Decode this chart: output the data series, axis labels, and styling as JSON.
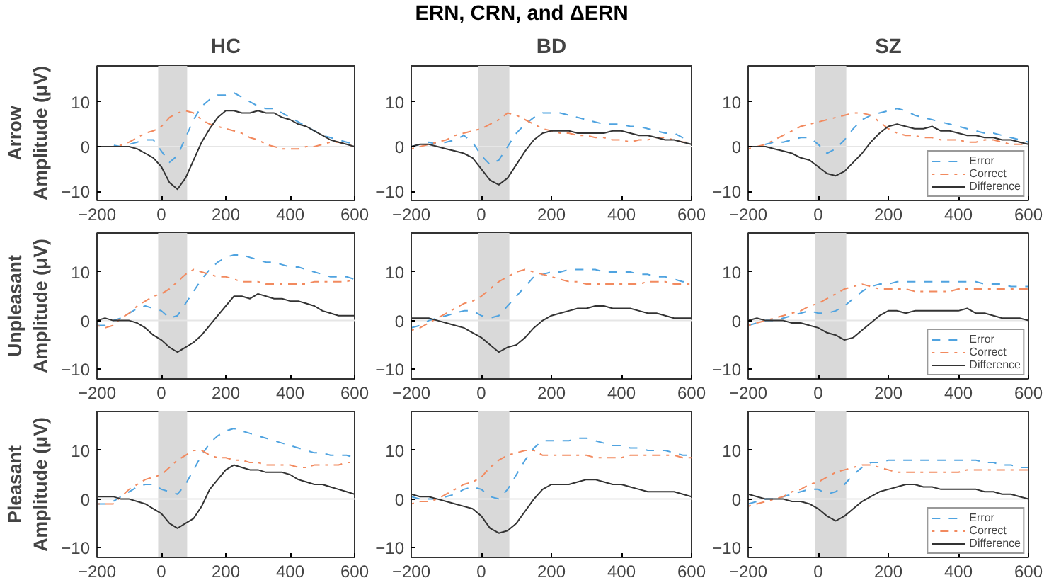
{
  "chart_data": [
    {
      "type": "line",
      "title": "HC",
      "ylabel": "Arrow\nAmplitude (μV)",
      "annotations": [
        "ERN, CRN, and ΔERN"
      ],
      "x": [
        -200,
        -175,
        -150,
        -125,
        -100,
        -75,
        -50,
        -25,
        0,
        25,
        50,
        75,
        100,
        125,
        150,
        175,
        200,
        225,
        250,
        275,
        300,
        325,
        350,
        375,
        400,
        425,
        450,
        475,
        500,
        525,
        550,
        575,
        600
      ],
      "xlim": [
        -200,
        600
      ],
      "ylim": [
        -12,
        18
      ],
      "xticks": [
        -200,
        0,
        200,
        400,
        600
      ],
      "yticks": [
        -10,
        0,
        10
      ],
      "bands": [
        {
          "axis": "x",
          "from": -10,
          "to": 80,
          "color": "#d9d9d9"
        }
      ],
      "ref_lines": [
        {
          "axis": "y",
          "value": 0,
          "color": "#e6e6e6"
        }
      ],
      "series": [
        {
          "color": "#4fa3e0",
          "line_style": "dashed",
          "values": [
            0,
            0,
            0.3,
            0,
            0.5,
            1,
            1.5,
            1.5,
            -1,
            -3.5,
            -2,
            2,
            6,
            9,
            10.5,
            11.5,
            11.5,
            12,
            11,
            10,
            9,
            8.5,
            8.5,
            7.5,
            6.5,
            5.5,
            4.5,
            3.5,
            2.5,
            2,
            1.5,
            1,
            0.5
          ]
        },
        {
          "color": "#f28a5f",
          "line_style": "dashdot",
          "values": [
            0,
            0,
            0,
            0.3,
            1,
            2,
            3,
            3.5,
            4.5,
            6.5,
            7.5,
            8,
            7.5,
            6,
            5,
            4.5,
            4,
            3.5,
            3,
            2,
            1.5,
            0.5,
            0,
            -0.5,
            -0.5,
            -0.5,
            0,
            0,
            0.5,
            1,
            1,
            0.5,
            0
          ]
        },
        {
          "color": "#333333",
          "line_style": "solid",
          "values": [
            0,
            0,
            0,
            0,
            0,
            -0.5,
            -1.5,
            -2.5,
            -4.5,
            -8,
            -9.5,
            -7,
            -3,
            1,
            4,
            6.5,
            8,
            8,
            7.5,
            7.5,
            8,
            7.5,
            7.5,
            6.5,
            6,
            5,
            4.5,
            3.5,
            2.5,
            1.5,
            1,
            0.5,
            0
          ]
        }
      ]
    },
    {
      "type": "line",
      "title": "BD",
      "x": [
        -200,
        -175,
        -150,
        -125,
        -100,
        -75,
        -50,
        -25,
        0,
        25,
        50,
        75,
        100,
        125,
        150,
        175,
        200,
        225,
        250,
        275,
        300,
        325,
        350,
        375,
        400,
        425,
        450,
        475,
        500,
        525,
        550,
        575,
        600
      ],
      "xlim": [
        -200,
        600
      ],
      "ylim": [
        -12,
        18
      ],
      "xticks": [
        -200,
        0,
        200,
        400,
        600
      ],
      "yticks": [
        -10,
        0,
        10
      ],
      "bands": [
        {
          "axis": "x",
          "from": -10,
          "to": 80,
          "color": "#d9d9d9"
        }
      ],
      "ref_lines": [
        {
          "axis": "y",
          "value": 0,
          "color": "#e6e6e6"
        }
      ],
      "series": [
        {
          "color": "#4fa3e0",
          "line_style": "dashed",
          "values": [
            0,
            0.5,
            1,
            0.5,
            1,
            1.5,
            2.5,
            1,
            -2,
            -4,
            -3,
            0,
            3,
            5,
            6.5,
            7.5,
            7.5,
            7.5,
            7,
            6.5,
            6,
            5.5,
            5,
            5,
            5,
            4.5,
            4.5,
            4,
            3.5,
            3,
            3,
            2,
            1.5
          ]
        },
        {
          "color": "#f28a5f",
          "line_style": "dashdot",
          "values": [
            -0.5,
            0,
            0.5,
            1,
            1.5,
            2.5,
            3,
            3.5,
            4,
            5,
            6,
            7.5,
            7,
            6,
            5,
            4,
            3.5,
            3,
            3,
            2.5,
            2.5,
            2,
            2,
            1.5,
            1.5,
            1,
            1.5,
            1.5,
            2,
            2,
            1.5,
            1,
            1
          ]
        },
        {
          "color": "#333333",
          "line_style": "solid",
          "values": [
            0,
            0.5,
            0.5,
            0,
            -0.5,
            -1,
            -1.5,
            -2.5,
            -5,
            -7.5,
            -8.5,
            -7,
            -4,
            -1,
            1.5,
            3,
            3.5,
            3.5,
            3.5,
            3,
            3,
            3,
            3,
            3.5,
            3.5,
            3,
            2.5,
            2.5,
            2,
            1.5,
            1.5,
            1,
            0.5
          ]
        }
      ]
    },
    {
      "type": "line",
      "title": "SZ",
      "legend": "bottom right",
      "x": [
        -200,
        -175,
        -150,
        -125,
        -100,
        -75,
        -50,
        -25,
        0,
        25,
        50,
        75,
        100,
        125,
        150,
        175,
        200,
        225,
        250,
        275,
        300,
        325,
        350,
        375,
        400,
        425,
        450,
        475,
        500,
        525,
        550,
        575,
        600
      ],
      "xlim": [
        -200,
        600
      ],
      "ylim": [
        -12,
        18
      ],
      "xticks": [
        -200,
        0,
        200,
        400,
        600
      ],
      "yticks": [
        -10,
        0,
        10
      ],
      "bands": [
        {
          "axis": "x",
          "from": -10,
          "to": 80,
          "color": "#d9d9d9"
        }
      ],
      "ref_lines": [
        {
          "axis": "y",
          "value": 0,
          "color": "#e6e6e6"
        }
      ],
      "series": [
        {
          "name": "Error",
          "color": "#4fa3e0",
          "line_style": "dashed",
          "values": [
            0,
            0,
            0.5,
            1,
            1,
            1.5,
            2,
            2,
            0.5,
            -1.5,
            -0.5,
            1.5,
            4,
            6,
            7,
            7.5,
            8,
            8.5,
            8,
            7,
            6.5,
            6,
            5.5,
            5,
            4.5,
            4,
            3.5,
            3,
            3,
            2.5,
            2,
            1.5,
            1
          ]
        },
        {
          "name": "Correct",
          "color": "#f28a5f",
          "line_style": "dashdot",
          "values": [
            -0.5,
            0,
            0.5,
            1.5,
            2.5,
            3.5,
            4.5,
            5,
            5.5,
            6,
            6.5,
            7,
            7.5,
            7.5,
            7,
            5.5,
            4,
            3,
            2.5,
            2.5,
            2,
            2,
            1.5,
            1.5,
            1.5,
            1,
            1,
            1.5,
            1.5,
            1,
            0.5,
            0.5,
            0.5
          ]
        },
        {
          "name": "Difference",
          "color": "#333333",
          "line_style": "solid",
          "values": [
            0,
            0,
            0,
            -0.5,
            -1,
            -1.5,
            -2.5,
            -3,
            -4.5,
            -6,
            -6.5,
            -5.5,
            -3.5,
            -1.5,
            1,
            3,
            4.5,
            5,
            4.5,
            4,
            4,
            4.5,
            3.5,
            3.5,
            3,
            2.5,
            2.5,
            2,
            2,
            1.5,
            1.5,
            1,
            0.5
          ]
        }
      ]
    },
    {
      "type": "line",
      "ylabel": "Unpleasant\nAmplitude (μV)",
      "x": [
        -200,
        -175,
        -150,
        -125,
        -100,
        -75,
        -50,
        -25,
        0,
        25,
        50,
        75,
        100,
        125,
        150,
        175,
        200,
        225,
        250,
        275,
        300,
        325,
        350,
        375,
        400,
        425,
        450,
        475,
        500,
        525,
        550,
        575,
        600
      ],
      "xlim": [
        -200,
        600
      ],
      "ylim": [
        -12,
        18
      ],
      "xticks": [
        -200,
        0,
        200,
        400,
        600
      ],
      "yticks": [
        -10,
        0,
        10
      ],
      "bands": [
        {
          "axis": "x",
          "from": -10,
          "to": 80,
          "color": "#d9d9d9"
        }
      ],
      "ref_lines": [
        {
          "axis": "y",
          "value": 0,
          "color": "#e6e6e6"
        }
      ],
      "series": [
        {
          "color": "#4fa3e0",
          "line_style": "dashed",
          "values": [
            -1,
            -1,
            0,
            0.5,
            1.5,
            2.5,
            3,
            2.5,
            2,
            0.5,
            1,
            3.5,
            6,
            8.5,
            10.5,
            12,
            13,
            13.5,
            13.5,
            13,
            12.5,
            12,
            12,
            11.5,
            11,
            11,
            10.5,
            10,
            9.5,
            9,
            9,
            9,
            8.5
          ]
        },
        {
          "color": "#f28a5f",
          "line_style": "dashdot",
          "values": [
            -1,
            -1.5,
            -1,
            0.5,
            1.5,
            3,
            4,
            5,
            5.5,
            6.5,
            8,
            9.5,
            10.5,
            10,
            9.5,
            9,
            9,
            8.5,
            8,
            8,
            8,
            7.5,
            7.5,
            7.5,
            7.5,
            7.5,
            7.5,
            8,
            8,
            8,
            8,
            8,
            8.5
          ]
        },
        {
          "color": "#333333",
          "line_style": "solid",
          "values": [
            0,
            0.5,
            0,
            0,
            0,
            -0.5,
            -1.5,
            -3,
            -4,
            -5.5,
            -6.5,
            -5.5,
            -4.5,
            -3,
            -1,
            1,
            3,
            5,
            5,
            4.5,
            5.5,
            5,
            4.5,
            4.5,
            4,
            4,
            3.5,
            3,
            2,
            1.5,
            1,
            1,
            1
          ]
        }
      ]
    },
    {
      "type": "line",
      "x": [
        -200,
        -175,
        -150,
        -125,
        -100,
        -75,
        -50,
        -25,
        0,
        25,
        50,
        75,
        100,
        125,
        150,
        175,
        200,
        225,
        250,
        275,
        300,
        325,
        350,
        375,
        400,
        425,
        450,
        475,
        500,
        525,
        550,
        575,
        600
      ],
      "xlim": [
        -200,
        600
      ],
      "ylim": [
        -12,
        18
      ],
      "xticks": [
        -200,
        0,
        200,
        400,
        600
      ],
      "yticks": [
        -10,
        0,
        10
      ],
      "bands": [
        {
          "axis": "x",
          "from": -10,
          "to": 80,
          "color": "#d9d9d9"
        }
      ],
      "ref_lines": [
        {
          "axis": "y",
          "value": 0,
          "color": "#e6e6e6"
        }
      ],
      "series": [
        {
          "color": "#4fa3e0",
          "line_style": "dashed",
          "values": [
            -1.5,
            -1,
            0,
            0.5,
            1,
            1.5,
            2,
            2,
            1,
            0.5,
            1,
            3,
            5,
            7,
            9,
            9.5,
            10,
            10,
            10.5,
            10.5,
            10.5,
            10.5,
            10,
            10,
            10,
            10,
            9.5,
            9.5,
            9,
            9,
            8.5,
            8,
            8
          ]
        },
        {
          "color": "#f28a5f",
          "line_style": "dashdot",
          "values": [
            -2,
            -1.5,
            -0.5,
            0.5,
            1.5,
            2.5,
            3.5,
            4,
            5,
            6.5,
            8,
            9,
            10,
            10.5,
            10,
            9.5,
            9,
            8.5,
            8,
            8,
            7.5,
            7.5,
            7.5,
            7.5,
            7.5,
            7.5,
            7.5,
            8,
            8,
            8,
            7.5,
            7.5,
            7.5
          ]
        },
        {
          "color": "#333333",
          "line_style": "solid",
          "values": [
            0.5,
            0.5,
            0.5,
            0,
            -0.5,
            -1,
            -1.5,
            -2.5,
            -3.5,
            -5,
            -6.5,
            -5.5,
            -5,
            -3.5,
            -1.5,
            0,
            1,
            1.5,
            2,
            2.5,
            2.5,
            3,
            3,
            2.5,
            2.5,
            2.5,
            2,
            1.5,
            1.5,
            1,
            0.5,
            0.5,
            0.5
          ]
        }
      ]
    },
    {
      "type": "line",
      "legend": "bottom right",
      "x": [
        -200,
        -175,
        -150,
        -125,
        -100,
        -75,
        -50,
        -25,
        0,
        25,
        50,
        75,
        100,
        125,
        150,
        175,
        200,
        225,
        250,
        275,
        300,
        325,
        350,
        375,
        400,
        425,
        450,
        475,
        500,
        525,
        550,
        575,
        600
      ],
      "xlim": [
        -200,
        600
      ],
      "ylim": [
        -12,
        18
      ],
      "xticks": [
        -200,
        0,
        200,
        400,
        600
      ],
      "yticks": [
        -10,
        0,
        10
      ],
      "bands": [
        {
          "axis": "x",
          "from": -10,
          "to": 80,
          "color": "#d9d9d9"
        }
      ],
      "ref_lines": [
        {
          "axis": "y",
          "value": 0,
          "color": "#e6e6e6"
        }
      ],
      "series": [
        {
          "name": "Error",
          "color": "#4fa3e0",
          "line_style": "dashed",
          "values": [
            -1,
            -0.5,
            0,
            0,
            0.5,
            1,
            1.5,
            2,
            1.5,
            1.5,
            2,
            3,
            4.5,
            6,
            7,
            7.5,
            7.5,
            8,
            8,
            8,
            8,
            8,
            8,
            8,
            8,
            8,
            8,
            7.5,
            7.5,
            7.5,
            7,
            7,
            7
          ]
        },
        {
          "name": "Correct",
          "color": "#f28a5f",
          "line_style": "dashdot",
          "values": [
            -1,
            -0.5,
            0,
            0.5,
            1,
            1.5,
            2,
            3,
            3.5,
            4.5,
            5.5,
            6.5,
            7,
            7.5,
            7,
            6.5,
            6.5,
            6.5,
            6.5,
            6,
            6,
            6,
            6,
            6,
            6.5,
            6.5,
            6.5,
            6.5,
            6.5,
            6.5,
            6.5,
            6.5,
            6.5
          ]
        },
        {
          "name": "Difference",
          "color": "#333333",
          "line_style": "solid",
          "values": [
            0,
            0.5,
            0,
            0,
            0,
            -0.5,
            -0.5,
            -1,
            -1.5,
            -2.5,
            -3,
            -4,
            -3.5,
            -2,
            -0.5,
            1,
            2,
            2,
            1.5,
            2,
            2,
            2,
            2,
            2,
            2,
            2.5,
            1.5,
            1.5,
            1,
            0.5,
            0.5,
            0.5,
            0
          ]
        }
      ]
    },
    {
      "type": "line",
      "ylabel": "Pleasant\nAmplitude (μV)",
      "x": [
        -200,
        -175,
        -150,
        -125,
        -100,
        -75,
        -50,
        -25,
        0,
        25,
        50,
        75,
        100,
        125,
        150,
        175,
        200,
        225,
        250,
        275,
        300,
        325,
        350,
        375,
        400,
        425,
        450,
        475,
        500,
        525,
        550,
        575,
        600
      ],
      "xlim": [
        -200,
        600
      ],
      "ylim": [
        -12,
        18
      ],
      "xticks": [
        -200,
        0,
        200,
        400,
        600
      ],
      "yticks": [
        -10,
        0,
        10
      ],
      "bands": [
        {
          "axis": "x",
          "from": -10,
          "to": 80,
          "color": "#d9d9d9"
        }
      ],
      "ref_lines": [
        {
          "axis": "y",
          "value": 0,
          "color": "#e6e6e6"
        }
      ],
      "series": [
        {
          "color": "#4fa3e0",
          "line_style": "dashed",
          "values": [
            -1,
            -1,
            -0.5,
            0.5,
            1.5,
            2.5,
            3,
            3,
            2,
            1.5,
            1,
            3,
            6,
            9,
            11.5,
            13,
            14,
            14.5,
            14,
            13.5,
            13,
            12.5,
            12,
            11.5,
            11,
            10.5,
            10,
            9.5,
            9.5,
            9,
            9,
            9,
            8.5
          ]
        },
        {
          "color": "#f28a5f",
          "line_style": "dashdot",
          "values": [
            -1,
            -1,
            -1,
            0.5,
            2,
            3,
            4,
            4.5,
            5,
            6.5,
            8,
            9,
            10,
            10,
            9,
            8.5,
            8.5,
            8,
            8,
            7.5,
            7.5,
            7,
            7,
            7,
            7,
            6.5,
            6.5,
            7,
            7,
            7,
            7,
            7.5,
            7.5
          ]
        },
        {
          "color": "#333333",
          "line_style": "solid",
          "values": [
            0.5,
            0.5,
            0.5,
            0,
            0,
            -0.5,
            -1,
            -2,
            -3,
            -5,
            -6,
            -5,
            -4,
            -1.5,
            2,
            4,
            6,
            7,
            6.5,
            6,
            6,
            5.5,
            5.5,
            5.5,
            5,
            4,
            3.5,
            3,
            3,
            2.5,
            2,
            1.5,
            1
          ]
        }
      ]
    },
    {
      "type": "line",
      "x": [
        -200,
        -175,
        -150,
        -125,
        -100,
        -75,
        -50,
        -25,
        0,
        25,
        50,
        75,
        100,
        125,
        150,
        175,
        200,
        225,
        250,
        275,
        300,
        325,
        350,
        375,
        400,
        425,
        450,
        475,
        500,
        525,
        550,
        575,
        600
      ],
      "xlim": [
        -200,
        600
      ],
      "ylim": [
        -12,
        18
      ],
      "xticks": [
        -200,
        0,
        200,
        400,
        600
      ],
      "yticks": [
        -10,
        0,
        10
      ],
      "bands": [
        {
          "axis": "x",
          "from": -10,
          "to": 80,
          "color": "#d9d9d9"
        }
      ],
      "ref_lines": [
        {
          "axis": "y",
          "value": 0,
          "color": "#e6e6e6"
        }
      ],
      "series": [
        {
          "color": "#4fa3e0",
          "line_style": "dashed",
          "values": [
            0.5,
            0,
            0,
            0,
            0.5,
            1,
            2,
            2.5,
            2,
            0.5,
            0,
            2,
            5,
            8,
            10.5,
            12,
            12,
            12,
            12,
            12.5,
            12.5,
            12,
            11.5,
            11,
            11,
            10.5,
            10.5,
            10,
            10,
            10,
            9.5,
            9,
            9
          ]
        },
        {
          "color": "#f28a5f",
          "line_style": "dashdot",
          "values": [
            -1,
            -0.5,
            -0.5,
            0,
            1,
            2,
            3,
            3.5,
            4.5,
            6.5,
            8,
            9,
            9.5,
            10,
            10,
            9,
            9,
            9,
            9,
            9,
            9,
            8.5,
            8.5,
            8.5,
            8.5,
            9,
            9,
            9,
            9,
            9,
            9,
            8.5,
            8.5
          ]
        },
        {
          "color": "#333333",
          "line_style": "solid",
          "values": [
            1,
            0.5,
            0.5,
            0,
            -0.5,
            -1,
            -1.5,
            -2,
            -3.5,
            -6,
            -7,
            -6.5,
            -5,
            -2.5,
            0,
            2,
            3,
            3,
            3,
            3.5,
            4,
            4,
            3.5,
            3,
            3,
            2.5,
            2,
            1.5,
            1.5,
            1.5,
            1.5,
            1,
            0.5
          ]
        }
      ]
    },
    {
      "type": "line",
      "legend": "bottom right",
      "x": [
        -200,
        -175,
        -150,
        -125,
        -100,
        -75,
        -50,
        -25,
        0,
        25,
        50,
        75,
        100,
        125,
        150,
        175,
        200,
        225,
        250,
        275,
        300,
        325,
        350,
        375,
        400,
        425,
        450,
        475,
        500,
        525,
        550,
        575,
        600
      ],
      "xlim": [
        -200,
        600
      ],
      "ylim": [
        -12,
        18
      ],
      "xticks": [
        -200,
        0,
        200,
        400,
        600
      ],
      "yticks": [
        -10,
        0,
        10
      ],
      "bands": [
        {
          "axis": "x",
          "from": -10,
          "to": 80,
          "color": "#d9d9d9"
        }
      ],
      "ref_lines": [
        {
          "axis": "y",
          "value": 0,
          "color": "#e6e6e6"
        }
      ],
      "series": [
        {
          "name": "Error",
          "color": "#4fa3e0",
          "line_style": "dashed",
          "values": [
            -1,
            -0.5,
            0,
            0,
            0.5,
            1,
            1.5,
            2,
            2,
            1,
            1.5,
            3,
            5,
            6.5,
            7.5,
            7.5,
            8,
            8,
            8,
            8,
            8,
            8,
            8,
            8,
            8,
            8,
            8,
            7.5,
            7.5,
            7,
            7,
            6.5,
            6.5
          ]
        },
        {
          "name": "Correct",
          "color": "#f28a5f",
          "line_style": "dashdot",
          "values": [
            -1.5,
            -1,
            -0.5,
            0,
            0.5,
            1.5,
            2,
            3,
            3.5,
            4.5,
            5.5,
            6,
            6.5,
            7,
            7,
            6.5,
            6,
            5.5,
            5.5,
            5.5,
            5.5,
            5.5,
            5.5,
            5.5,
            5.5,
            6,
            6,
            6,
            6,
            6,
            6,
            6,
            6
          ]
        },
        {
          "name": "Difference",
          "color": "#333333",
          "line_style": "solid",
          "values": [
            1,
            0.5,
            0,
            0,
            0,
            -0.5,
            -0.5,
            -1,
            -2,
            -3.5,
            -4.5,
            -3.5,
            -2,
            -0.5,
            0.5,
            1.5,
            2,
            2.5,
            3,
            3,
            2.5,
            2.5,
            2,
            2,
            2,
            2,
            2,
            1.5,
            1.5,
            1,
            1,
            0.5,
            0
          ]
        }
      ]
    }
  ]
}
